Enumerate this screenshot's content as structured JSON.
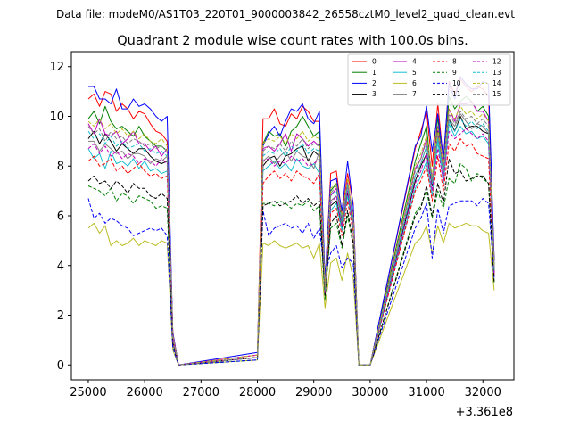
{
  "header": {
    "data_file": "Data file: modeM0/AS1T03_220T01_9000003842_26558cztM0_level2_quad_clean.evt"
  },
  "chart_data": {
    "type": "line",
    "title": "Quadrant 2 module wise count rates with 100.0s bins.",
    "xlabel": "",
    "ylabel": "",
    "x_offset_label": "+3.361e8",
    "xlim": [
      24700,
      32550
    ],
    "ylim": [
      -0.6,
      12.6
    ],
    "grid": false,
    "legend_position": "top-right",
    "x_ticks": [
      25000,
      26000,
      27000,
      28000,
      29000,
      30000,
      31000,
      32000
    ],
    "x_tick_labels": [
      "25000",
      "26000",
      "27000",
      "28000",
      "29000",
      "30000",
      "31000",
      "32000"
    ],
    "y_ticks": [
      0,
      2,
      4,
      6,
      8,
      10,
      12
    ],
    "y_tick_labels": [
      "0",
      "2",
      "4",
      "6",
      "8",
      "10",
      "12"
    ],
    "x": [
      25000,
      25100,
      25200,
      25300,
      25400,
      25500,
      25600,
      25700,
      25800,
      25900,
      26000,
      26100,
      26200,
      26300,
      26400,
      26500,
      26600,
      28000,
      28100,
      28200,
      28300,
      28400,
      28500,
      28600,
      28700,
      28800,
      28900,
      29000,
      29100,
      29200,
      29300,
      29400,
      29500,
      29600,
      29700,
      29800,
      29900,
      30000,
      30800,
      30900,
      31000,
      31100,
      31200,
      31300,
      31400,
      31500,
      31600,
      31700,
      31800,
      31900,
      32000,
      32100,
      32200
    ],
    "series": [
      {
        "name": "0",
        "color": "#ff0000",
        "dash": false,
        "values": [
          10.7,
          10.9,
          10.4,
          11.0,
          10.9,
          10.2,
          10.5,
          10.3,
          9.9,
          10.2,
          10.1,
          9.7,
          9.4,
          9.3,
          9.0,
          1.3,
          0,
          0.4,
          9.9,
          9.9,
          10.3,
          9.7,
          9.6,
          10.1,
          9.9,
          10.4,
          10.2,
          9.8,
          9.8,
          3.2,
          7.7,
          7.8,
          6.0,
          7.7,
          6.5,
          0,
          0,
          0,
          8.7,
          9.4,
          10.2,
          8.0,
          10.5,
          8.2,
          11.4,
          10.9,
          11.5,
          11.2,
          11.0,
          11.2,
          11.1,
          10.8,
          4.2
        ]
      },
      {
        "name": "1",
        "color": "#008000",
        "dash": false,
        "values": [
          9.9,
          10.2,
          9.7,
          10.4,
          9.8,
          9.5,
          9.6,
          9.4,
          9.2,
          9.6,
          9.2,
          9.0,
          8.8,
          8.8,
          8.6,
          1.2,
          0,
          0.3,
          8.9,
          9.4,
          9.2,
          9.3,
          8.8,
          9.4,
          9.6,
          10.0,
          9.6,
          9.2,
          9.4,
          3.0,
          7.0,
          7.3,
          5.7,
          7.3,
          6.0,
          0,
          0,
          0,
          8.2,
          8.9,
          9.6,
          7.3,
          10.0,
          7.7,
          10.8,
          10.3,
          10.6,
          10.8,
          10.6,
          10.2,
          10.4,
          10.0,
          4.0
        ]
      },
      {
        "name": "2",
        "color": "#0000ff",
        "dash": false,
        "values": [
          11.2,
          11.2,
          10.7,
          10.7,
          10.5,
          11.1,
          10.3,
          10.3,
          10.7,
          10.4,
          10.5,
          10.3,
          10.0,
          9.8,
          10.0,
          1.3,
          0,
          0.5,
          8.8,
          9.3,
          9.6,
          9.2,
          9.8,
          10.3,
          10.2,
          10.5,
          9.9,
          9.7,
          10.2,
          3.4,
          7.4,
          7.5,
          6.2,
          8.2,
          6.4,
          0,
          0,
          0,
          8.8,
          9.2,
          10.4,
          8.6,
          10.1,
          8.3,
          11.3,
          10.7,
          11.6,
          11.3,
          11.1,
          11.1,
          11.4,
          11.3,
          4.2
        ]
      },
      {
        "name": "3",
        "color": "#000000",
        "dash": false,
        "values": [
          9.1,
          9.4,
          8.9,
          9.3,
          9.0,
          8.6,
          8.9,
          8.7,
          8.5,
          8.7,
          8.7,
          8.4,
          8.2,
          8.1,
          8.2,
          1.1,
          0,
          0.3,
          8.0,
          8.3,
          8.4,
          8.0,
          8.4,
          8.5,
          8.7,
          8.8,
          8.2,
          8.6,
          8.4,
          3.0,
          6.4,
          6.6,
          5.5,
          6.9,
          5.5,
          0,
          0,
          0,
          7.4,
          8.0,
          8.5,
          7.2,
          9.4,
          7.7,
          9.9,
          9.4,
          10.0,
          9.5,
          9.6,
          9.6,
          9.4,
          9.3,
          3.7
        ]
      },
      {
        "name": "4",
        "color": "#c000c0",
        "dash": false,
        "values": [
          9.7,
          9.3,
          9.9,
          9.3,
          9.2,
          9.4,
          8.9,
          9.1,
          9.4,
          8.9,
          8.9,
          8.6,
          8.8,
          8.4,
          8.7,
          1.2,
          0,
          0.4,
          8.7,
          8.8,
          8.6,
          8.9,
          9.3,
          8.6,
          9.3,
          9.1,
          8.8,
          9.0,
          8.8,
          3.1,
          6.8,
          7.1,
          5.9,
          7.4,
          5.9,
          0,
          0,
          0,
          7.9,
          8.3,
          9.1,
          7.5,
          9.6,
          7.9,
          10.3,
          9.8,
          10.5,
          10.5,
          10.6,
          10.2,
          10.2,
          9.8,
          3.9
        ]
      },
      {
        "name": "5",
        "color": "#17becf",
        "dash": false,
        "values": [
          8.7,
          8.3,
          8.5,
          7.9,
          8.6,
          8.1,
          8.2,
          8.0,
          8.3,
          7.9,
          8.2,
          7.8,
          7.9,
          7.7,
          7.8,
          1.0,
          0,
          0.3,
          7.8,
          8.0,
          8.2,
          7.9,
          8.1,
          7.8,
          8.3,
          8.0,
          7.9,
          8.1,
          7.7,
          2.8,
          6.2,
          6.5,
          5.4,
          6.8,
          5.5,
          0,
          0,
          0,
          7.1,
          7.6,
          8.2,
          6.8,
          9.0,
          7.3,
          9.7,
          9.2,
          9.6,
          9.3,
          9.4,
          9.1,
          9.2,
          8.9,
          3.6
        ]
      },
      {
        "name": "6",
        "color": "#bcbd22",
        "dash": false,
        "values": [
          5.5,
          5.7,
          5.3,
          5.6,
          4.8,
          5.0,
          4.8,
          4.9,
          5.1,
          4.8,
          5.0,
          4.9,
          4.8,
          5.0,
          4.9,
          0.6,
          0,
          0.2,
          4.9,
          4.8,
          5.0,
          4.8,
          4.7,
          4.8,
          4.9,
          4.7,
          4.8,
          4.3,
          4.9,
          2.3,
          4.1,
          4.3,
          3.4,
          4.5,
          3.5,
          0,
          0,
          0,
          4.9,
          5.1,
          5.6,
          4.5,
          5.6,
          4.9,
          5.7,
          5.5,
          5.6,
          5.7,
          5.6,
          5.6,
          5.4,
          5.3,
          3.0
        ]
      },
      {
        "name": "7",
        "color": "#7f7f7f",
        "dash": false,
        "values": [
          9.0,
          9.0,
          8.6,
          8.9,
          8.7,
          8.5,
          8.6,
          8.3,
          8.5,
          8.5,
          8.4,
          8.1,
          8.3,
          8.2,
          8.4,
          1.1,
          0,
          0.3,
          8.2,
          8.4,
          8.1,
          8.4,
          8.6,
          8.2,
          8.6,
          8.4,
          8.3,
          7.9,
          8.6,
          2.9,
          6.6,
          6.8,
          5.6,
          7.2,
          5.7,
          0,
          0,
          0,
          7.6,
          8.1,
          8.8,
          7.3,
          9.3,
          7.6,
          9.9,
          9.6,
          10.1,
          9.8,
          9.5,
          9.7,
          9.6,
          9.3,
          3.8
        ]
      },
      {
        "name": "8",
        "color": "#ff0000",
        "dash": true,
        "values": [
          8.2,
          8.4,
          8.0,
          8.1,
          8.3,
          7.8,
          8.0,
          7.7,
          7.9,
          8.1,
          7.8,
          7.6,
          7.7,
          7.5,
          7.6,
          1.0,
          0,
          0.3,
          7.3,
          7.6,
          7.8,
          7.5,
          7.7,
          7.4,
          7.8,
          7.6,
          7.5,
          7.3,
          7.7,
          2.8,
          6.1,
          6.3,
          5.2,
          6.6,
          5.3,
          0,
          0,
          0,
          7.0,
          7.4,
          8.0,
          6.6,
          8.4,
          7.0,
          8.9,
          8.6,
          9.1,
          8.8,
          8.9,
          8.5,
          8.4,
          8.3,
          3.6
        ]
      },
      {
        "name": "9",
        "color": "#008000",
        "dash": true,
        "values": [
          7.2,
          7.1,
          7.0,
          6.8,
          7.1,
          6.6,
          6.9,
          6.8,
          6.5,
          6.8,
          6.7,
          6.6,
          6.3,
          6.4,
          6.3,
          0.8,
          0,
          0.2,
          6.5,
          6.5,
          6.4,
          6.6,
          6.5,
          6.3,
          6.5,
          6.4,
          6.6,
          6.2,
          6.4,
          2.6,
          5.5,
          5.7,
          4.7,
          6.0,
          4.8,
          0,
          0,
          0,
          6.1,
          6.4,
          7.0,
          5.9,
          7.0,
          6.3,
          7.5,
          7.3,
          8.1,
          7.9,
          7.4,
          7.7,
          7.5,
          7.3,
          3.3
        ]
      },
      {
        "name": "10",
        "color": "#0000ff",
        "dash": true,
        "values": [
          6.7,
          5.9,
          6.1,
          5.7,
          5.9,
          5.8,
          5.6,
          5.5,
          5.2,
          5.3,
          5.4,
          5.5,
          5.4,
          5.5,
          5.2,
          0.7,
          0,
          0.2,
          6.2,
          5.2,
          5.5,
          5.6,
          5.7,
          5.5,
          5.6,
          5.3,
          5.7,
          5.1,
          5.5,
          3.6,
          4.5,
          4.8,
          3.9,
          4.3,
          4.1,
          0,
          0,
          0,
          5.5,
          5.9,
          6.5,
          4.3,
          6.3,
          5.3,
          6.4,
          6.5,
          6.6,
          6.6,
          6.6,
          6.4,
          6.7,
          6.5,
          3.5
        ]
      },
      {
        "name": "11",
        "color": "#000000",
        "dash": true,
        "values": [
          7.4,
          7.6,
          7.3,
          7.4,
          7.1,
          7.4,
          7.2,
          6.9,
          7.3,
          7.1,
          7.1,
          6.8,
          6.7,
          6.9,
          6.7,
          0.9,
          0,
          0.3,
          6.4,
          6.5,
          6.6,
          6.4,
          6.5,
          6.6,
          6.8,
          6.5,
          6.7,
          6.4,
          6.6,
          2.8,
          5.7,
          6.0,
          4.8,
          6.2,
          4.9,
          0,
          0,
          0,
          6.0,
          6.3,
          7.2,
          6.0,
          7.3,
          6.5,
          8.3,
          7.7,
          7.8,
          7.4,
          7.5,
          7.6,
          7.6,
          7.3,
          3.3
        ]
      },
      {
        "name": "12",
        "color": "#c000c0",
        "dash": true,
        "values": [
          8.7,
          8.9,
          8.5,
          8.8,
          8.4,
          8.6,
          8.3,
          8.5,
          8.4,
          8.1,
          8.3,
          8.2,
          8.0,
          8.3,
          8.1,
          1.0,
          0,
          0.3,
          8.2,
          8.3,
          8.0,
          8.2,
          8.1,
          8.4,
          8.2,
          8.3,
          8.0,
          8.1,
          8.3,
          2.9,
          6.5,
          6.8,
          5.6,
          7.0,
          5.6,
          0,
          0,
          0,
          7.3,
          7.8,
          8.5,
          7.0,
          8.7,
          7.4,
          9.4,
          9.1,
          9.3,
          9.5,
          9.3,
          9.1,
          9.3,
          9.0,
          3.7
        ]
      },
      {
        "name": "13",
        "color": "#17becf",
        "dash": true,
        "values": [
          9.4,
          9.1,
          9.3,
          8.9,
          9.2,
          8.8,
          9.0,
          8.7,
          8.8,
          8.9,
          8.6,
          8.7,
          8.5,
          8.6,
          8.4,
          1.1,
          0,
          0.3,
          8.4,
          8.6,
          8.5,
          8.7,
          8.4,
          8.8,
          8.6,
          8.9,
          8.5,
          8.7,
          8.6,
          3.0,
          6.8,
          7.0,
          5.8,
          7.2,
          5.8,
          0,
          0,
          0,
          7.6,
          8.1,
          8.8,
          7.3,
          9.1,
          7.7,
          9.8,
          9.4,
          9.9,
          9.6,
          9.8,
          9.5,
          9.7,
          9.4,
          3.8
        ]
      },
      {
        "name": "14",
        "color": "#bcbd22",
        "dash": true,
        "values": [
          9.8,
          9.6,
          9.9,
          9.5,
          9.7,
          9.3,
          9.5,
          9.2,
          9.4,
          9.1,
          9.3,
          9.0,
          8.9,
          9.1,
          8.8,
          1.2,
          0,
          0.4,
          8.9,
          9.1,
          9.0,
          9.2,
          8.9,
          9.3,
          9.1,
          9.4,
          9.0,
          9.2,
          9.1,
          3.1,
          7.1,
          7.3,
          6.0,
          7.5,
          6.0,
          0,
          0,
          0,
          8.0,
          8.5,
          9.2,
          7.6,
          9.5,
          8.0,
          10.3,
          9.9,
          10.4,
          10.1,
          10.2,
          9.9,
          10.1,
          9.8,
          3.9
        ]
      },
      {
        "name": "15",
        "color": "#7f7f7f",
        "dash": true,
        "values": [
          9.6,
          9.3,
          9.5,
          9.0,
          9.4,
          9.1,
          9.2,
          8.9,
          9.1,
          9.0,
          8.8,
          8.9,
          8.7,
          8.8,
          8.6,
          1.1,
          0,
          0.3,
          8.6,
          8.8,
          8.7,
          8.9,
          8.6,
          9.0,
          8.8,
          9.1,
          8.7,
          8.9,
          8.8,
          3.0,
          6.9,
          7.2,
          5.9,
          7.3,
          5.9,
          0,
          0,
          0,
          7.8,
          8.3,
          9.0,
          7.4,
          9.3,
          7.8,
          10.1,
          9.7,
          10.2,
          9.9,
          10.0,
          9.7,
          9.9,
          9.6,
          3.8
        ]
      }
    ]
  }
}
